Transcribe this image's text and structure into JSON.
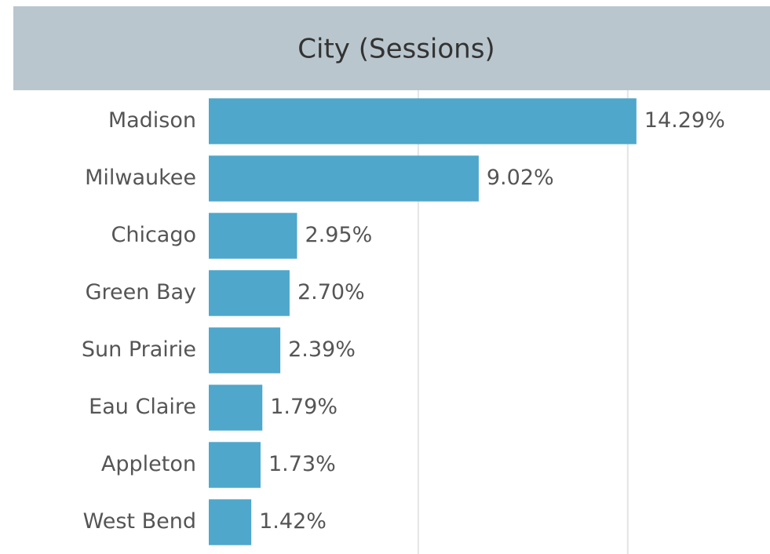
{
  "chart_data": {
    "type": "barh",
    "title": "City (Sessions)",
    "categories": [
      "Madison",
      "Milwaukee",
      "Chicago",
      "Green Bay",
      "Sun Prairie",
      "Eau Claire",
      "Appleton",
      "West Bend"
    ],
    "values": [
      14.29,
      9.02,
      2.95,
      2.7,
      2.39,
      1.79,
      1.73,
      1.42
    ],
    "value_labels": [
      "14.29%",
      "9.02%",
      "2.95%",
      "2.70%",
      "2.39%",
      "1.79%",
      "1.73%",
      "1.42%"
    ],
    "color": "#4fa7cb",
    "xlim": [
      0,
      16
    ],
    "xticks": [
      7,
      14
    ],
    "grid": true
  }
}
